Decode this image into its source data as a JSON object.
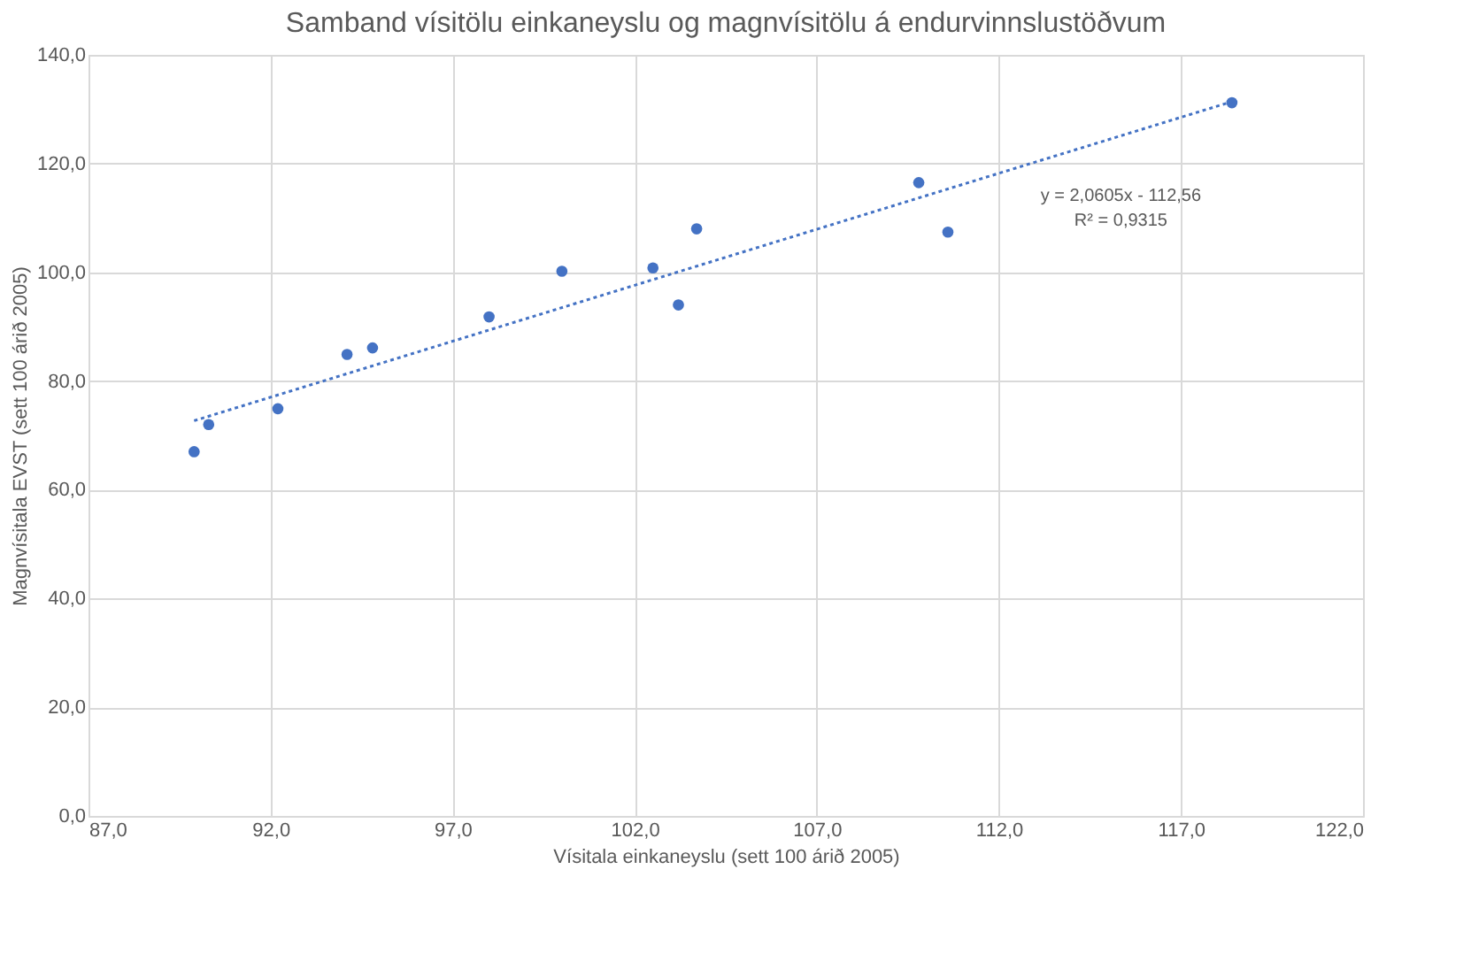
{
  "chart_data": {
    "type": "scatter",
    "title": "Samband vísitölu einkaneyslu og magnvísitölu á endurvinnslustöðvum",
    "xlabel": "Vísitala einkaneyslu (sett 100 árið 2005)",
    "ylabel": "Magnvísitala EVST (sett 100 árið 2005)",
    "series": [
      {
        "color": "#4472c4",
        "marker": "circle",
        "x": [
          89.9,
          90.3,
          92.2,
          94.1,
          94.8,
          98.0,
          100.0,
          102.5,
          103.2,
          103.7,
          109.8,
          110.6,
          118.4
        ],
        "values": [
          67.0,
          72.0,
          74.9,
          84.9,
          86.1,
          91.8,
          100.2,
          100.8,
          94.0,
          108.0,
          116.5,
          107.4,
          131.2
        ]
      },
      {
        "type": "line",
        "color": "#4472c4",
        "line_style": "dotted",
        "x": [
          89.9,
          118.4
        ],
        "values": [
          72.7,
          131.4
        ]
      }
    ],
    "annotations": [
      "y = 2,0605x - 112,56",
      "R² = 0,9315"
    ],
    "xlim": [
      87,
      122
    ],
    "xticks": [
      {
        "value": 87,
        "label": "87,0"
      },
      {
        "value": 92,
        "label": "92,0"
      },
      {
        "value": 97,
        "label": "97,0"
      },
      {
        "value": 102,
        "label": "102,0"
      },
      {
        "value": 107,
        "label": "107,0"
      },
      {
        "value": 112,
        "label": "112,0"
      },
      {
        "value": 117,
        "label": "117,0"
      },
      {
        "value": 122,
        "label": "122,0"
      }
    ],
    "ylim": [
      0,
      140
    ],
    "yticks": [
      {
        "value": 0,
        "label": "0,0"
      },
      {
        "value": 20,
        "label": "20,0"
      },
      {
        "value": 40,
        "label": "40,0"
      },
      {
        "value": 60,
        "label": "60,0"
      },
      {
        "value": 80,
        "label": "80,0"
      },
      {
        "value": 100,
        "label": "100,0"
      },
      {
        "value": 120,
        "label": "120,0"
      },
      {
        "value": 140,
        "label": "140,0"
      }
    ],
    "grid": true
  }
}
